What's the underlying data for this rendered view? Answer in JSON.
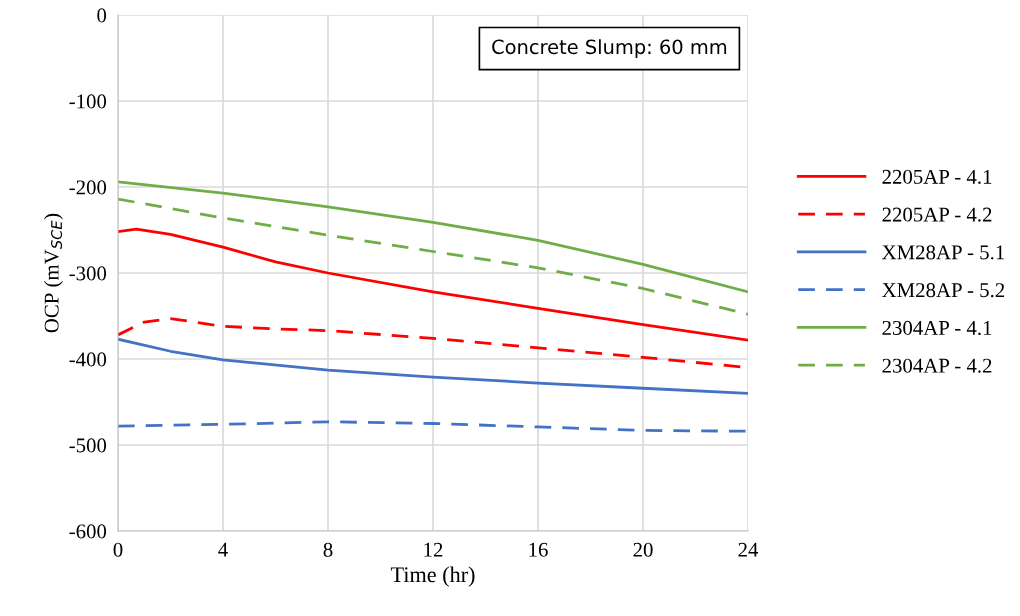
{
  "chart_data": {
    "type": "line",
    "xlabel": "Time (hr)",
    "ylabel": "OCP (mV$_{SCE}$)",
    "xlim": [
      0,
      24
    ],
    "xticks": [
      0,
      4,
      8,
      12,
      16,
      20,
      24
    ],
    "ylim": [
      -600,
      0
    ],
    "yticks": [
      -600,
      -500,
      -400,
      -300,
      -200,
      -100,
      0
    ],
    "grid": true,
    "legend": "right",
    "marker": "none",
    "annotations": [
      "Concrete Slump: 60 mm"
    ],
    "series": [
      {
        "name": "2205AP - 4.1",
        "color": "#ff0000",
        "line_style": "solid",
        "x": [
          0,
          0.7,
          2,
          4,
          6,
          8,
          12,
          16,
          20,
          24
        ],
        "values": [
          -252,
          -249,
          -255,
          -270,
          -287,
          -300,
          -322,
          -341,
          -360,
          -378
        ]
      },
      {
        "name": "2205AP - 4.2",
        "color": "#ff0000",
        "line_style": "dashed",
        "x": [
          0,
          1,
          2,
          4,
          6,
          8,
          12,
          16,
          20,
          24
        ],
        "values": [
          -372,
          -357,
          -353,
          -362,
          -365,
          -367,
          -376,
          -387,
          -398,
          -410
        ]
      },
      {
        "name": "XM28AP - 5.1",
        "color": "#4472c4",
        "line_style": "solid",
        "x": [
          0,
          2,
          4,
          8,
          12,
          16,
          20,
          24
        ],
        "values": [
          -377,
          -391,
          -401,
          -413,
          -421,
          -428,
          -434,
          -440
        ]
      },
      {
        "name": "XM28AP - 5.2",
        "color": "#4472c4",
        "line_style": "dashed",
        "x": [
          0,
          4,
          8,
          12,
          16,
          20,
          24
        ],
        "values": [
          -478,
          -476,
          -473,
          -475,
          -479,
          -483,
          -484
        ]
      },
      {
        "name": "2304AP - 4.1",
        "color": "#70ad47",
        "line_style": "solid",
        "x": [
          0,
          4,
          8,
          12,
          16,
          20,
          24
        ],
        "values": [
          -194,
          -207,
          -223,
          -241,
          -262,
          -290,
          -322
        ]
      },
      {
        "name": "2304AP - 4.2",
        "color": "#70ad47",
        "line_style": "dashed",
        "x": [
          0,
          4,
          8,
          12,
          16,
          20,
          24
        ],
        "values": [
          -214,
          -236,
          -256,
          -275,
          -294,
          -318,
          -348
        ]
      }
    ]
  }
}
